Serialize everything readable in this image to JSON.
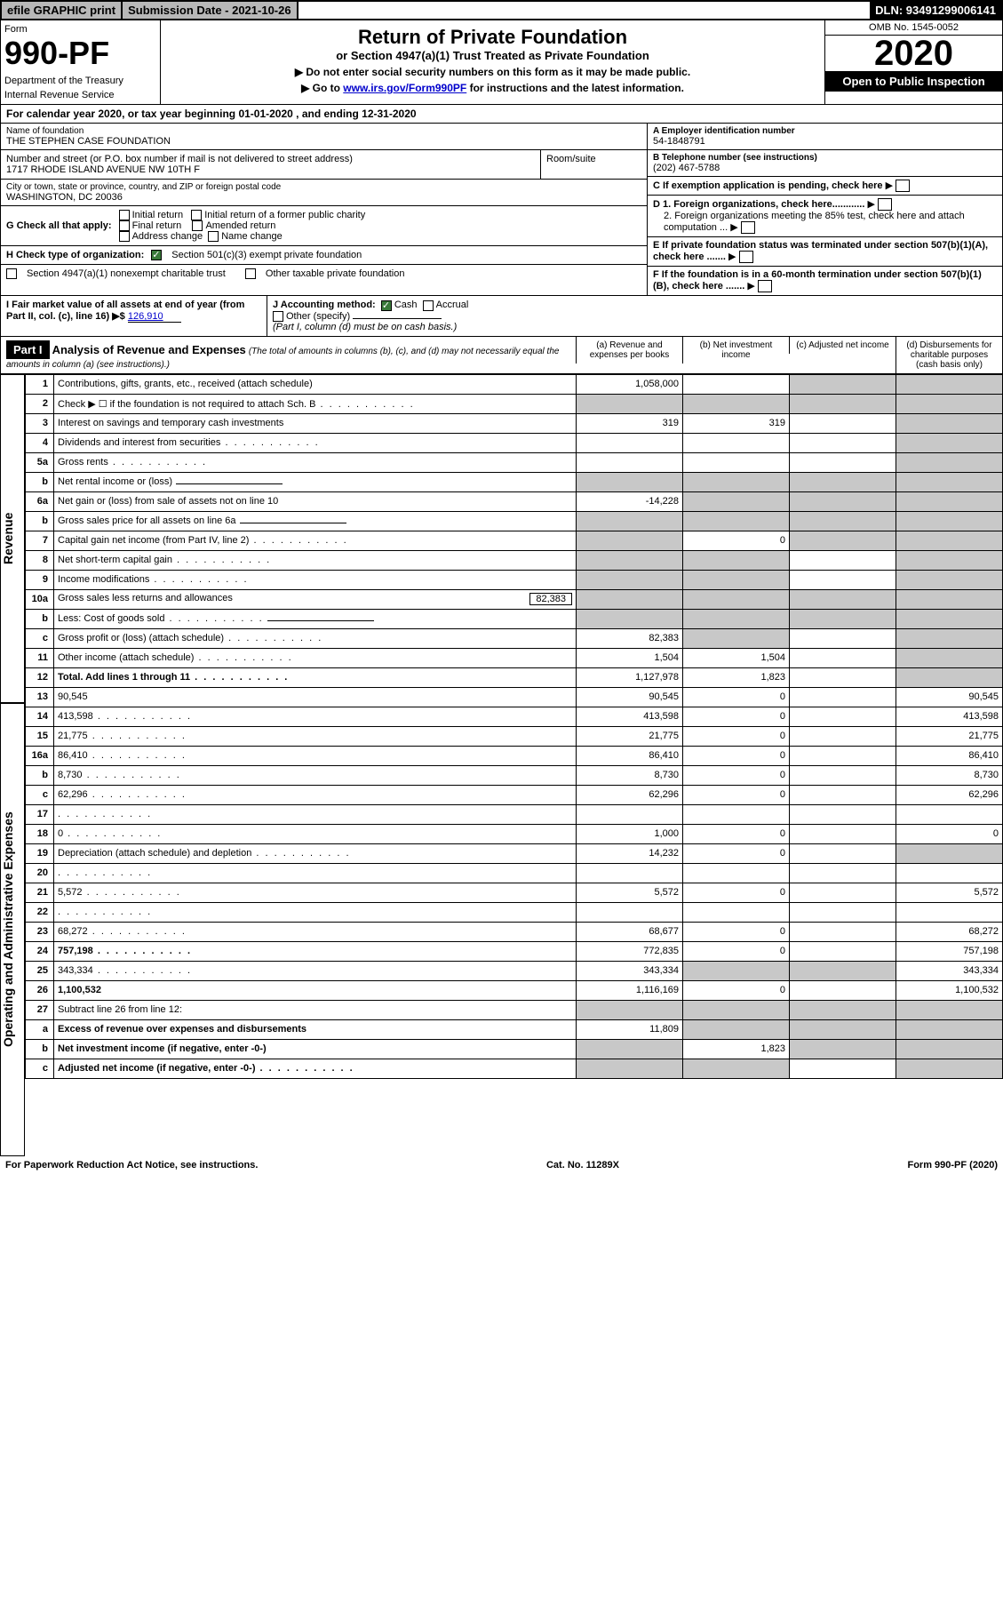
{
  "top": {
    "efile": "efile GRAPHIC print",
    "sub_date_lbl": "Submission Date - 2021-10-26",
    "dln": "DLN: 93491299006141"
  },
  "header": {
    "form_lbl": "Form",
    "form_num": "990-PF",
    "dept": "Department of the Treasury",
    "irs": "Internal Revenue Service",
    "title": "Return of Private Foundation",
    "subtitle": "or Section 4947(a)(1) Trust Treated as Private Foundation",
    "note1": "▶ Do not enter social security numbers on this form as it may be made public.",
    "note2_pre": "▶ Go to ",
    "note2_link": "www.irs.gov/Form990PF",
    "note2_post": " for instructions and the latest information.",
    "omb": "OMB No. 1545-0052",
    "year": "2020",
    "open": "Open to Public Inspection"
  },
  "cal_year": "For calendar year 2020, or tax year beginning 01-01-2020              , and ending 12-31-2020",
  "info": {
    "name_lbl": "Name of foundation",
    "name": "THE STEPHEN CASE FOUNDATION",
    "addr_lbl": "Number and street (or P.O. box number if mail is not delivered to street address)",
    "room_lbl": "Room/suite",
    "addr": "1717 RHODE ISLAND AVENUE NW 10TH F",
    "city_lbl": "City or town, state or province, country, and ZIP or foreign postal code",
    "city": "WASHINGTON, DC  20036",
    "a_lbl": "A Employer identification number",
    "a_val": "54-1848791",
    "b_lbl": "B Telephone number (see instructions)",
    "b_val": "(202) 467-5788",
    "c_lbl": "C If exemption application is pending, check here",
    "d1_lbl": "D 1. Foreign organizations, check here............",
    "d2_lbl": "2. Foreign organizations meeting the 85% test, check here and attach computation ...",
    "e_lbl": "E  If private foundation status was terminated under section 507(b)(1)(A), check here .......",
    "f_lbl": "F  If the foundation is in a 60-month termination under section 507(b)(1)(B), check here .......",
    "g_lbl": "G Check all that apply:",
    "g_opts": [
      "Initial return",
      "Initial return of a former public charity",
      "Final return",
      "Amended return",
      "Address change",
      "Name change"
    ],
    "h_lbl": "H Check type of organization:",
    "h_opt1": "Section 501(c)(3) exempt private foundation",
    "h_opt2": "Section 4947(a)(1) nonexempt charitable trust",
    "h_opt3": "Other taxable private foundation",
    "i_lbl": "I Fair market value of all assets at end of year (from Part II, col. (c), line 16) ▶$ ",
    "i_val": "126,910",
    "j_lbl": "J Accounting method:",
    "j_opts": [
      "Cash",
      "Accrual"
    ],
    "j_other": "Other (specify)",
    "j_note": "(Part I, column (d) must be on cash basis.)"
  },
  "part1": {
    "label": "Part I",
    "title": "Analysis of Revenue and Expenses",
    "desc": "(The total of amounts in columns (b), (c), and (d) may not necessarily equal the amounts in column (a) (see instructions).)",
    "cols": {
      "a": "(a)   Revenue and expenses per books",
      "b": "(b)   Net investment income",
      "c": "(c)   Adjusted net income",
      "d": "(d)   Disbursements for charitable purposes (cash basis only)"
    }
  },
  "side_labels": {
    "revenue": "Revenue",
    "expenses": "Operating and Administrative Expenses"
  },
  "rows": [
    {
      "n": "1",
      "d": "Contributions, gifts, grants, etc., received (attach schedule)",
      "a": "1,058,000",
      "b": "",
      "c_grey": true,
      "d_grey": true
    },
    {
      "n": "2",
      "d": "Check ▶ ☐ if the foundation is not required to attach Sch. B",
      "a_grey": true,
      "b_grey": true,
      "c_grey": true,
      "d_grey": true,
      "dots": true
    },
    {
      "n": "3",
      "d": "Interest on savings and temporary cash investments",
      "a": "319",
      "b": "319",
      "c": "",
      "d_grey": true
    },
    {
      "n": "4",
      "d": "Dividends and interest from securities",
      "a": "",
      "b": "",
      "c": "",
      "d_grey": true,
      "dots": true
    },
    {
      "n": "5a",
      "d": "Gross rents",
      "a": "",
      "b": "",
      "c": "",
      "d_grey": true,
      "dots": true
    },
    {
      "n": "b",
      "d": "Net rental income or (loss)",
      "a_grey": true,
      "b_grey": true,
      "c_grey": true,
      "d_grey": true,
      "inline_blank": true
    },
    {
      "n": "6a",
      "d": "Net gain or (loss) from sale of assets not on line 10",
      "a": "-14,228",
      "b_grey": true,
      "c_grey": true,
      "d_grey": true
    },
    {
      "n": "b",
      "d": "Gross sales price for all assets on line 6a",
      "a_grey": true,
      "b_grey": true,
      "c_grey": true,
      "d_grey": true,
      "inline_blank": true
    },
    {
      "n": "7",
      "d": "Capital gain net income (from Part IV, line 2)",
      "a_grey": true,
      "b": "0",
      "c_grey": true,
      "d_grey": true,
      "dots": true
    },
    {
      "n": "8",
      "d": "Net short-term capital gain",
      "a_grey": true,
      "b_grey": true,
      "c": "",
      "d_grey": true,
      "dots": true
    },
    {
      "n": "9",
      "d": "Income modifications",
      "a_grey": true,
      "b_grey": true,
      "c": "",
      "d_grey": true,
      "dots": true
    },
    {
      "n": "10a",
      "d": "Gross sales less returns and allowances",
      "a_grey": true,
      "b_grey": true,
      "c_grey": true,
      "d_grey": true,
      "inline_val": "82,383"
    },
    {
      "n": "b",
      "d": "Less: Cost of goods sold",
      "a_grey": true,
      "b_grey": true,
      "c_grey": true,
      "d_grey": true,
      "dots": true,
      "inline_blank": true
    },
    {
      "n": "c",
      "d": "Gross profit or (loss) (attach schedule)",
      "a": "82,383",
      "b_grey": true,
      "c": "",
      "d_grey": true,
      "dots": true
    },
    {
      "n": "11",
      "d": "Other income (attach schedule)",
      "a": "1,504",
      "b": "1,504",
      "c": "",
      "d_grey": true,
      "dots": true
    },
    {
      "n": "12",
      "d": "Total. Add lines 1 through 11",
      "a": "1,127,978",
      "b": "1,823",
      "c": "",
      "d_grey": true,
      "bold": true,
      "dots": true
    },
    {
      "n": "13",
      "d": "90,545",
      "a": "90,545",
      "b": "0",
      "c": ""
    },
    {
      "n": "14",
      "d": "413,598",
      "a": "413,598",
      "b": "0",
      "c": "",
      "dots": true
    },
    {
      "n": "15",
      "d": "21,775",
      "a": "21,775",
      "b": "0",
      "c": "",
      "dots": true
    },
    {
      "n": "16a",
      "d": "86,410",
      "a": "86,410",
      "b": "0",
      "c": "",
      "dots": true
    },
    {
      "n": "b",
      "d": "8,730",
      "a": "8,730",
      "b": "0",
      "c": "",
      "dots": true
    },
    {
      "n": "c",
      "d": "62,296",
      "a": "62,296",
      "b": "0",
      "c": "",
      "dots": true
    },
    {
      "n": "17",
      "d": "",
      "a": "",
      "b": "",
      "c": "",
      "dots": true
    },
    {
      "n": "18",
      "d": "0",
      "a": "1,000",
      "b": "0",
      "c": "",
      "dots": true
    },
    {
      "n": "19",
      "d": "Depreciation (attach schedule) and depletion",
      "a": "14,232",
      "b": "0",
      "c": "",
      "d_grey": true,
      "dots": true
    },
    {
      "n": "20",
      "d": "",
      "a": "",
      "b": "",
      "c": "",
      "dots": true
    },
    {
      "n": "21",
      "d": "5,572",
      "a": "5,572",
      "b": "0",
      "c": "",
      "dots": true
    },
    {
      "n": "22",
      "d": "",
      "a": "",
      "b": "",
      "c": "",
      "dots": true
    },
    {
      "n": "23",
      "d": "68,272",
      "a": "68,677",
      "b": "0",
      "c": "",
      "dots": true
    },
    {
      "n": "24",
      "d": "757,198",
      "a": "772,835",
      "b": "0",
      "c": "",
      "bold": true,
      "dots": true
    },
    {
      "n": "25",
      "d": "343,334",
      "a": "343,334",
      "b_grey": true,
      "c_grey": true,
      "dots": true
    },
    {
      "n": "26",
      "d": "1,100,532",
      "a": "1,116,169",
      "b": "0",
      "c": "",
      "bold": true
    },
    {
      "n": "27",
      "d": "Subtract line 26 from line 12:",
      "a_grey": true,
      "b_grey": true,
      "c_grey": true,
      "d_grey": true
    },
    {
      "n": "a",
      "d": "Excess of revenue over expenses and disbursements",
      "a": "11,809",
      "b_grey": true,
      "c_grey": true,
      "d_grey": true,
      "bold": true
    },
    {
      "n": "b",
      "d": "Net investment income (if negative, enter -0-)",
      "a_grey": true,
      "b": "1,823",
      "c_grey": true,
      "d_grey": true,
      "bold": true
    },
    {
      "n": "c",
      "d": "Adjusted net income (if negative, enter -0-)",
      "a_grey": true,
      "b_grey": true,
      "c": "",
      "d_grey": true,
      "bold": true,
      "dots": true
    }
  ],
  "footer": {
    "left": "For Paperwork Reduction Act Notice, see instructions.",
    "mid": "Cat. No. 11289X",
    "right": "Form 990-PF (2020)"
  }
}
